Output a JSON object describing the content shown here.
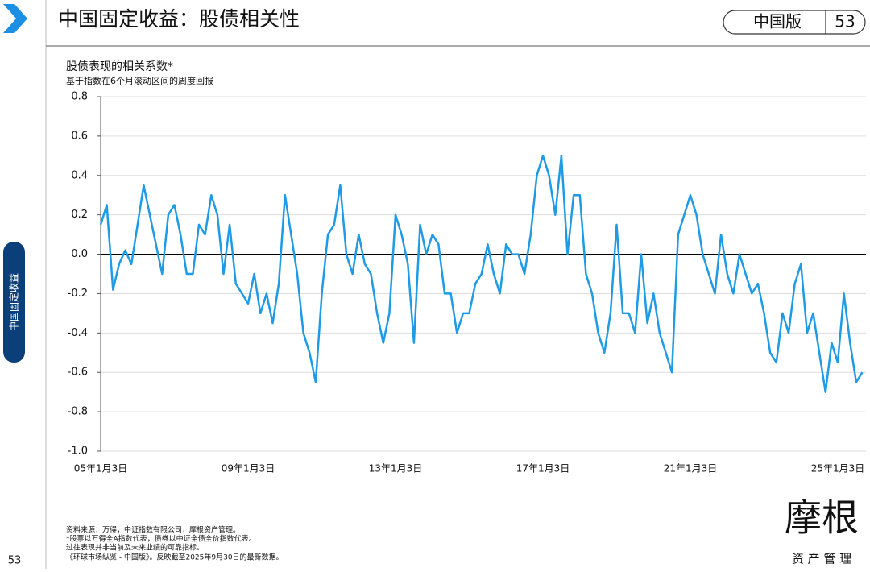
{
  "header": {
    "title": "中国固定收益：股债相关性",
    "edition": "中国版",
    "page": "53"
  },
  "side_tab": "中国固定收益",
  "page_number": "53",
  "footnotes": [
    "资料来源：万得，中证指数有限公司，摩根资产管理。",
    "*股票以万得全A指数代表，债券以中证全债全价指数代表。",
    "过往表现并非当前及未来业绩的可靠指标。",
    "《环球市场纵览 - 中国版》。反映截至2025年9月30日的最新数据。"
  ],
  "logo": {
    "name": "摩根",
    "tagline": "资 产 管 理"
  },
  "chart_data": {
    "type": "line",
    "title": "股债表现的相关系数*",
    "subtitle": "基于指数在6个月滚动区间的周度回报",
    "color": "#1f9be6",
    "categories": [
      "05年1月3日",
      null,
      null,
      null,
      null,
      null,
      null,
      null,
      null,
      null,
      null,
      null,
      null,
      null,
      null,
      null,
      null,
      null,
      null,
      null,
      null,
      null,
      null,
      null,
      "09年1月3日",
      null,
      null,
      null,
      null,
      null,
      null,
      null,
      null,
      null,
      null,
      null,
      null,
      null,
      null,
      null,
      null,
      null,
      null,
      null,
      null,
      null,
      null,
      null,
      "13年1月3日",
      null,
      null,
      null,
      null,
      null,
      null,
      null,
      null,
      null,
      null,
      null,
      null,
      null,
      null,
      null,
      null,
      null,
      null,
      null,
      null,
      null,
      null,
      null,
      "17年1月3日",
      null,
      null,
      null,
      null,
      null,
      null,
      null,
      null,
      null,
      null,
      null,
      null,
      null,
      null,
      null,
      null,
      null,
      null,
      null,
      null,
      null,
      null,
      null,
      "21年1月3日",
      null,
      null,
      null,
      null,
      null,
      null,
      null,
      null,
      null,
      null,
      null,
      null,
      null,
      null,
      null,
      null,
      null,
      null,
      null,
      null,
      null,
      null,
      null,
      "25年1月3日",
      null,
      null,
      null,
      null
    ],
    "values": [
      0.15,
      0.25,
      -0.18,
      -0.05,
      0.02,
      -0.05,
      0.15,
      0.35,
      0.2,
      0.05,
      -0.1,
      0.2,
      0.25,
      0.1,
      -0.1,
      -0.1,
      0.15,
      0.1,
      0.3,
      0.2,
      -0.1,
      0.15,
      -0.15,
      -0.2,
      -0.25,
      -0.1,
      -0.3,
      -0.2,
      -0.35,
      -0.15,
      0.3,
      0.1,
      -0.1,
      -0.4,
      -0.5,
      -0.65,
      -0.2,
      0.1,
      0.15,
      0.35,
      0.0,
      -0.1,
      0.1,
      -0.05,
      -0.1,
      -0.3,
      -0.45,
      -0.3,
      0.2,
      0.1,
      -0.05,
      -0.45,
      0.15,
      0.0,
      0.1,
      0.05,
      -0.2,
      -0.2,
      -0.4,
      -0.3,
      -0.3,
      -0.15,
      -0.1,
      0.05,
      -0.1,
      -0.2,
      0.05,
      0.0,
      0.0,
      -0.1,
      0.1,
      0.4,
      0.5,
      0.4,
      0.2,
      0.5,
      0.0,
      0.3,
      0.3,
      -0.1,
      -0.2,
      -0.4,
      -0.5,
      -0.3,
      0.15,
      -0.3,
      -0.3,
      -0.4,
      0.0,
      -0.35,
      -0.2,
      -0.4,
      -0.5,
      -0.6,
      0.1,
      0.2,
      0.3,
      0.2,
      0.0,
      -0.1,
      -0.2,
      0.1,
      -0.1,
      -0.2,
      0.0,
      -0.1,
      -0.2,
      -0.15,
      -0.3,
      -0.5,
      -0.55,
      -0.3,
      -0.4,
      -0.15,
      -0.05,
      -0.4,
      -0.3,
      -0.5,
      -0.7,
      -0.45,
      -0.55,
      -0.2,
      -0.45,
      -0.65,
      -0.6
    ],
    "ylim": [
      -1.0,
      0.8
    ],
    "yticks": [
      {
        "value": 0.8,
        "label": "0.8"
      },
      {
        "value": 0.6,
        "label": "0.6"
      },
      {
        "value": 0.4,
        "label": "0.4"
      },
      {
        "value": 0.2,
        "label": "0.2"
      },
      {
        "value": 0,
        "label": "0.0"
      },
      {
        "value": -0.2,
        "label": "-0.2"
      },
      {
        "value": -0.4,
        "label": "-0.4"
      },
      {
        "value": -0.6,
        "label": "-0.6"
      },
      {
        "value": -0.8,
        "label": "-0.8"
      },
      {
        "value": -1.0,
        "label": "-1.0"
      }
    ],
    "grid": true
  }
}
